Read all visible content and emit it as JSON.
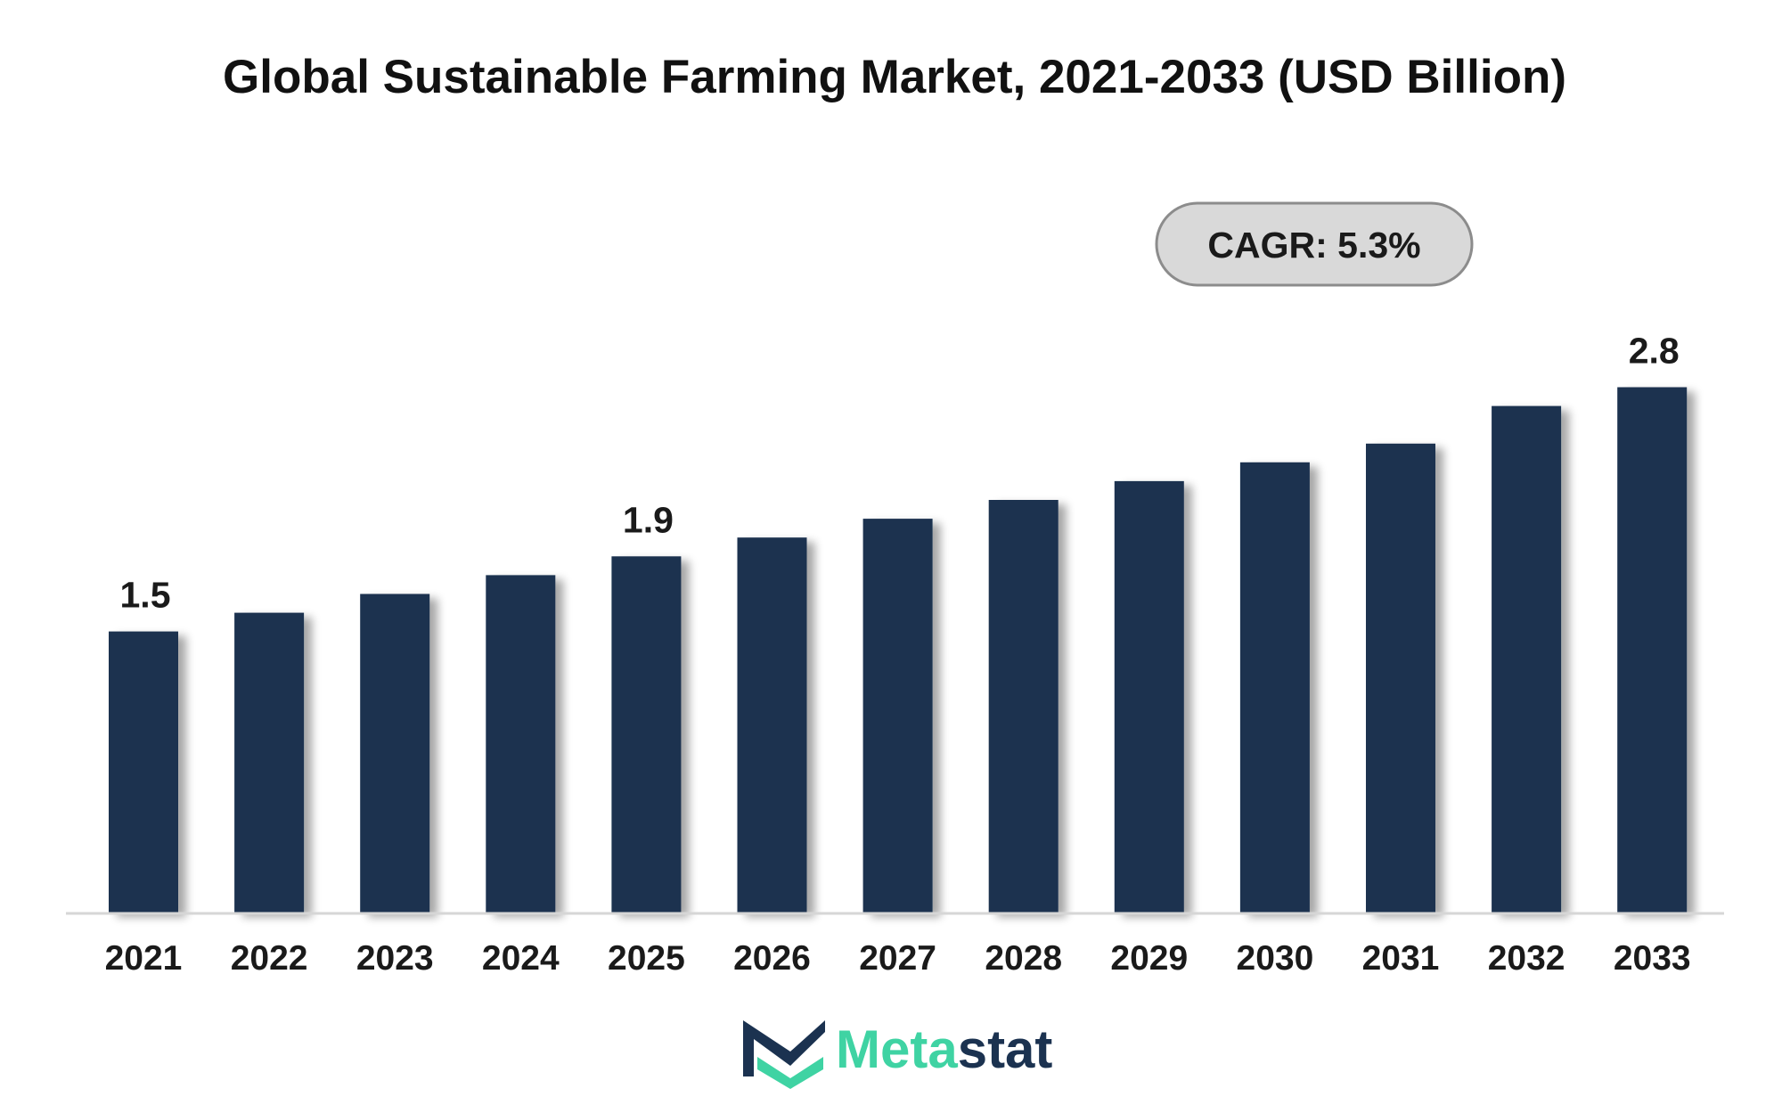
{
  "colors": {
    "bar": "#1b3250",
    "axis": "#d6d6d6",
    "badge_fill": "#d9d9d9",
    "badge_stroke": "#8c8c8c",
    "logo_dark": "#1b3250",
    "logo_accent": "#3fd3a3"
  },
  "chart_data": {
    "type": "bar",
    "title": "Global Sustainable Farming Market, 2021-2033 (USD Billion)",
    "xlabel": "",
    "ylabel": "",
    "categories": [
      "2021",
      "2022",
      "2023",
      "2024",
      "2025",
      "2026",
      "2027",
      "2028",
      "2029",
      "2030",
      "2031",
      "2032",
      "2033"
    ],
    "values": [
      1.5,
      1.6,
      1.7,
      1.8,
      1.9,
      2.0,
      2.1,
      2.2,
      2.3,
      2.4,
      2.5,
      2.7,
      2.8
    ],
    "data_labels": [
      {
        "index": 0,
        "text": "1.5"
      },
      {
        "index": 4,
        "text": "1.9"
      },
      {
        "index": 12,
        "text": "2.8"
      }
    ],
    "annotation": "CAGR: 5.3%",
    "ylim": [
      0,
      3.0
    ],
    "grid": false,
    "legend": "none"
  },
  "logo": {
    "part1": "Meta",
    "part2": "stat",
    "icon": "metastat-m-logo-icon"
  }
}
